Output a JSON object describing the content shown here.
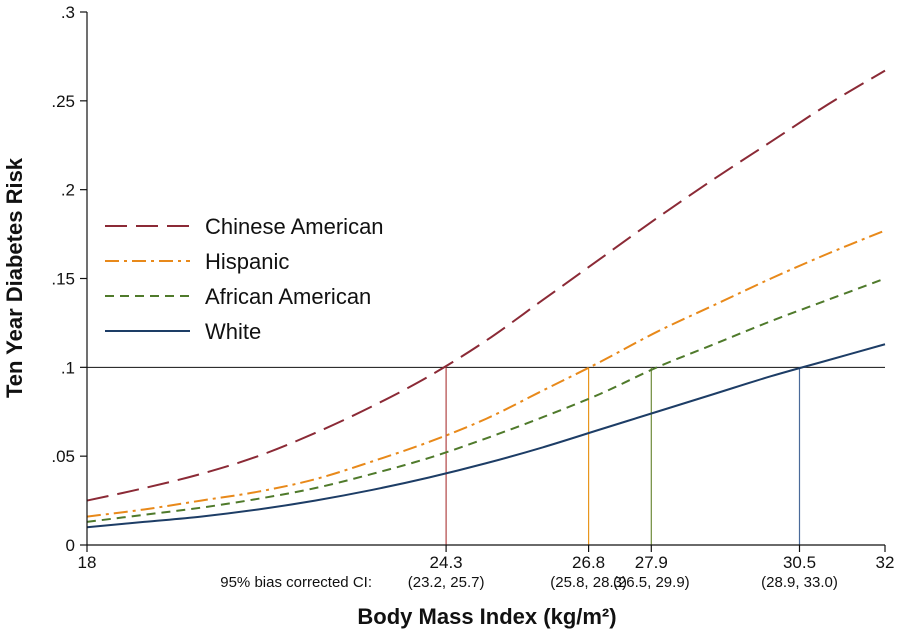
{
  "chart_data": {
    "type": "line",
    "title": "",
    "xlabel": "Body Mass Index (kg/m²)",
    "ylabel": "Ten Year Diabetes Risk",
    "xlim": [
      18,
      32
    ],
    "ylim": [
      0,
      0.3
    ],
    "y_ticks": [
      {
        "value": 0,
        "label": "0"
      },
      {
        "value": 0.05,
        "label": ".05"
      },
      {
        "value": 0.1,
        "label": ".1"
      },
      {
        "value": 0.15,
        "label": ".15"
      },
      {
        "value": 0.2,
        "label": ".2"
      },
      {
        "value": 0.25,
        "label": ".25"
      },
      {
        "value": 0.3,
        "label": ".3"
      }
    ],
    "x_ticks": [
      {
        "value": 18,
        "label": "18",
        "ci": ""
      },
      {
        "value": 24.3,
        "label": "24.3",
        "ci": "(23.2, 25.7)"
      },
      {
        "value": 26.8,
        "label": "26.8",
        "ci": "(25.8, 28.3)"
      },
      {
        "value": 27.9,
        "label": "27.9",
        "ci": "(26.5, 29.9)"
      },
      {
        "value": 30.5,
        "label": "30.5",
        "ci": "(28.9, 33.0)"
      },
      {
        "value": 32,
        "label": "32",
        "ci": ""
      }
    ],
    "ci_label": "95% bias corrected CI:",
    "reference_line": {
      "y": 0.1
    },
    "threshold_markers": [
      {
        "x": 24.3,
        "color": "#b04545"
      },
      {
        "x": 26.8,
        "color": "#e8961e"
      },
      {
        "x": 27.9,
        "color": "#6e8a3a"
      },
      {
        "x": 30.5,
        "color": "#4a6a9a"
      }
    ],
    "x": [
      18,
      19,
      20,
      21,
      22,
      23,
      24,
      25,
      26,
      27,
      28,
      29,
      30,
      31,
      32
    ],
    "series": [
      {
        "name": "Chinese American",
        "color": "#8b2a36",
        "dash": "long",
        "values": [
          0.025,
          0.032,
          0.04,
          0.05,
          0.063,
          0.078,
          0.095,
          0.115,
          0.138,
          0.161,
          0.184,
          0.206,
          0.227,
          0.248,
          0.267
        ]
      },
      {
        "name": "Hispanic",
        "color": "#e8891a",
        "dash": "dashdot",
        "values": [
          0.016,
          0.02,
          0.025,
          0.03,
          0.037,
          0.047,
          0.058,
          0.071,
          0.087,
          0.103,
          0.12,
          0.135,
          0.15,
          0.164,
          0.177
        ]
      },
      {
        "name": "African American",
        "color": "#4f7a2b",
        "dash": "short",
        "values": [
          0.013,
          0.017,
          0.021,
          0.026,
          0.032,
          0.04,
          0.049,
          0.06,
          0.072,
          0.085,
          0.1,
          0.113,
          0.126,
          0.138,
          0.15
        ]
      },
      {
        "name": "White",
        "color": "#1d3d66",
        "dash": "solid",
        "values": [
          0.01,
          0.013,
          0.016,
          0.02,
          0.025,
          0.031,
          0.038,
          0.046,
          0.055,
          0.065,
          0.075,
          0.085,
          0.095,
          0.104,
          0.113
        ]
      }
    ]
  }
}
